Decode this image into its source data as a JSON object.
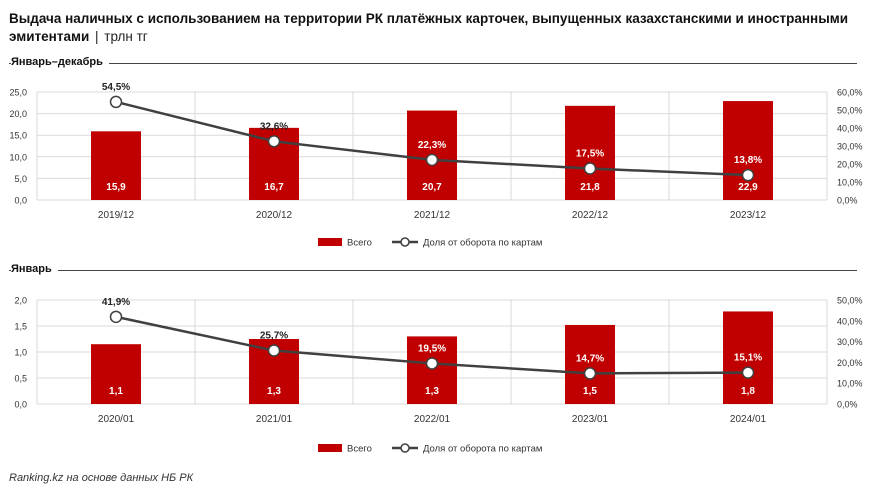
{
  "title": {
    "main": "Выдача наличных с использованием на территории РК платёжных карточек, выпущенных казахстанскими и иностранными эмитентами",
    "separator": "|",
    "unit": "трлн тг"
  },
  "colors": {
    "bar": "#c00000",
    "line": "#404040",
    "marker_fill": "#ffffff",
    "grid": "#d9d9d9"
  },
  "chart_data": [
    {
      "type": "bar",
      "section_label": "Январь–декабрь",
      "categories": [
        "2019/12",
        "2020/12",
        "2021/12",
        "2022/12",
        "2023/12"
      ],
      "series": [
        {
          "name": "Всего",
          "type": "bar",
          "axis": "left",
          "values": [
            15.9,
            16.7,
            20.7,
            21.8,
            22.9
          ],
          "labels": [
            "15,9",
            "16,7",
            "20,7",
            "21,8",
            "22,9"
          ]
        },
        {
          "name": "Доля от оборота по картам",
          "type": "line",
          "axis": "right",
          "values": [
            54.5,
            32.6,
            22.3,
            17.5,
            13.8
          ],
          "labels": [
            "54,5%",
            "32,6%",
            "22,3%",
            "17,5%",
            "13,8%"
          ]
        }
      ],
      "y_left": {
        "min": 0,
        "max": 25,
        "ticks": [
          "0,0",
          "5,0",
          "10,0",
          "15,0",
          "20,0",
          "25,0"
        ]
      },
      "y_right": {
        "min": 0,
        "max": 60,
        "ticks": [
          "0,0%",
          "10,0%",
          "20,0%",
          "30,0%",
          "40,0%",
          "50,0%",
          "60,0%"
        ]
      },
      "legend": [
        "Всего",
        "Доля от оборота по картам"
      ]
    },
    {
      "type": "bar",
      "section_label": "Январь",
      "categories": [
        "2020/01",
        "2021/01",
        "2022/01",
        "2023/01",
        "2024/01"
      ],
      "series": [
        {
          "name": "Всего",
          "type": "bar",
          "axis": "left",
          "values": [
            1.15,
            1.25,
            1.3,
            1.52,
            1.78
          ],
          "labels": [
            "1,1",
            "1,3",
            "1,3",
            "1,5",
            "1,8"
          ]
        },
        {
          "name": "Доля от оборота по картам",
          "type": "line",
          "axis": "right",
          "values": [
            41.9,
            25.7,
            19.5,
            14.7,
            15.1
          ],
          "labels": [
            "41,9%",
            "25,7%",
            "19,5%",
            "14,7%",
            "15,1%"
          ]
        }
      ],
      "y_left": {
        "min": 0,
        "max": 2,
        "ticks": [
          "0,0",
          "0,5",
          "1,0",
          "1,5",
          "2,0"
        ]
      },
      "y_right": {
        "min": 0,
        "max": 50,
        "ticks": [
          "0,0%",
          "10,0%",
          "20,0%",
          "30,0%",
          "40,0%",
          "50,0%"
        ]
      },
      "legend": [
        "Всего",
        "Доля от оборота по картам"
      ]
    }
  ],
  "source": "Ranking.kz на основе данных НБ РК"
}
